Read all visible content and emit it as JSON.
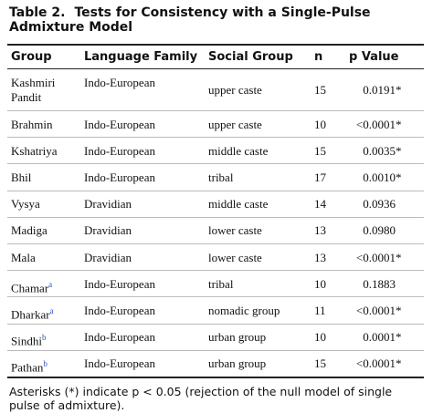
{
  "title": {
    "label": "Table 2.",
    "text": "Tests for Consistency with a Single-Pulse Admixture Model"
  },
  "table": {
    "header": [
      "Group",
      "Language Family",
      "Social Group",
      "n",
      "p Value"
    ],
    "rows": [
      {
        "group": "Kashmiri Pandit",
        "language": "Indo-European",
        "social": "upper caste",
        "n": 15,
        "p": "0.0191",
        "sig": "*"
      },
      {
        "group": "Brahmin",
        "language": "Indo-European",
        "social": "upper caste",
        "n": 10,
        "p": "<0.0001",
        "sig": "*"
      },
      {
        "group": "Kshatriya",
        "language": "Indo-European",
        "social": "middle caste",
        "n": 15,
        "p": "0.0035",
        "sig": "*"
      },
      {
        "group": "Bhil",
        "language": "Indo-European",
        "social": "tribal",
        "n": 17,
        "p": "0.0010",
        "sig": "*"
      },
      {
        "group": "Vysya",
        "language": "Dravidian",
        "social": "middle caste",
        "n": 14,
        "p": "0.0936"
      },
      {
        "group": "Madiga",
        "language": "Dravidian",
        "social": "lower caste",
        "n": 13,
        "p": "0.0980"
      },
      {
        "group": "Mala",
        "language": "Dravidian",
        "social": "lower caste",
        "n": 13,
        "p": "<0.0001",
        "sig": "*"
      },
      {
        "group": "Chamar",
        "note": "a",
        "language": "Indo-European",
        "social": "tribal",
        "n": 10,
        "p": "0.1883"
      },
      {
        "group": "Dharkar",
        "note": "a",
        "language": "Indo-European",
        "social": "nomadic group",
        "n": 11,
        "p": "<0.0001",
        "sig": "*"
      },
      {
        "group": "Sindhi",
        "note": "b",
        "language": "Indo-European",
        "social": "urban group",
        "n": 10,
        "p": "0.0001",
        "sig": "*"
      },
      {
        "group": "Pathan",
        "note": "b",
        "language": "Indo-European",
        "social": "urban group",
        "n": 15,
        "p": "<0.0001",
        "sig": "*"
      }
    ]
  },
  "footnote": "Asterisks (*) indicate p < 0.05 (rejection of the null model of single pulse of admixture)."
}
